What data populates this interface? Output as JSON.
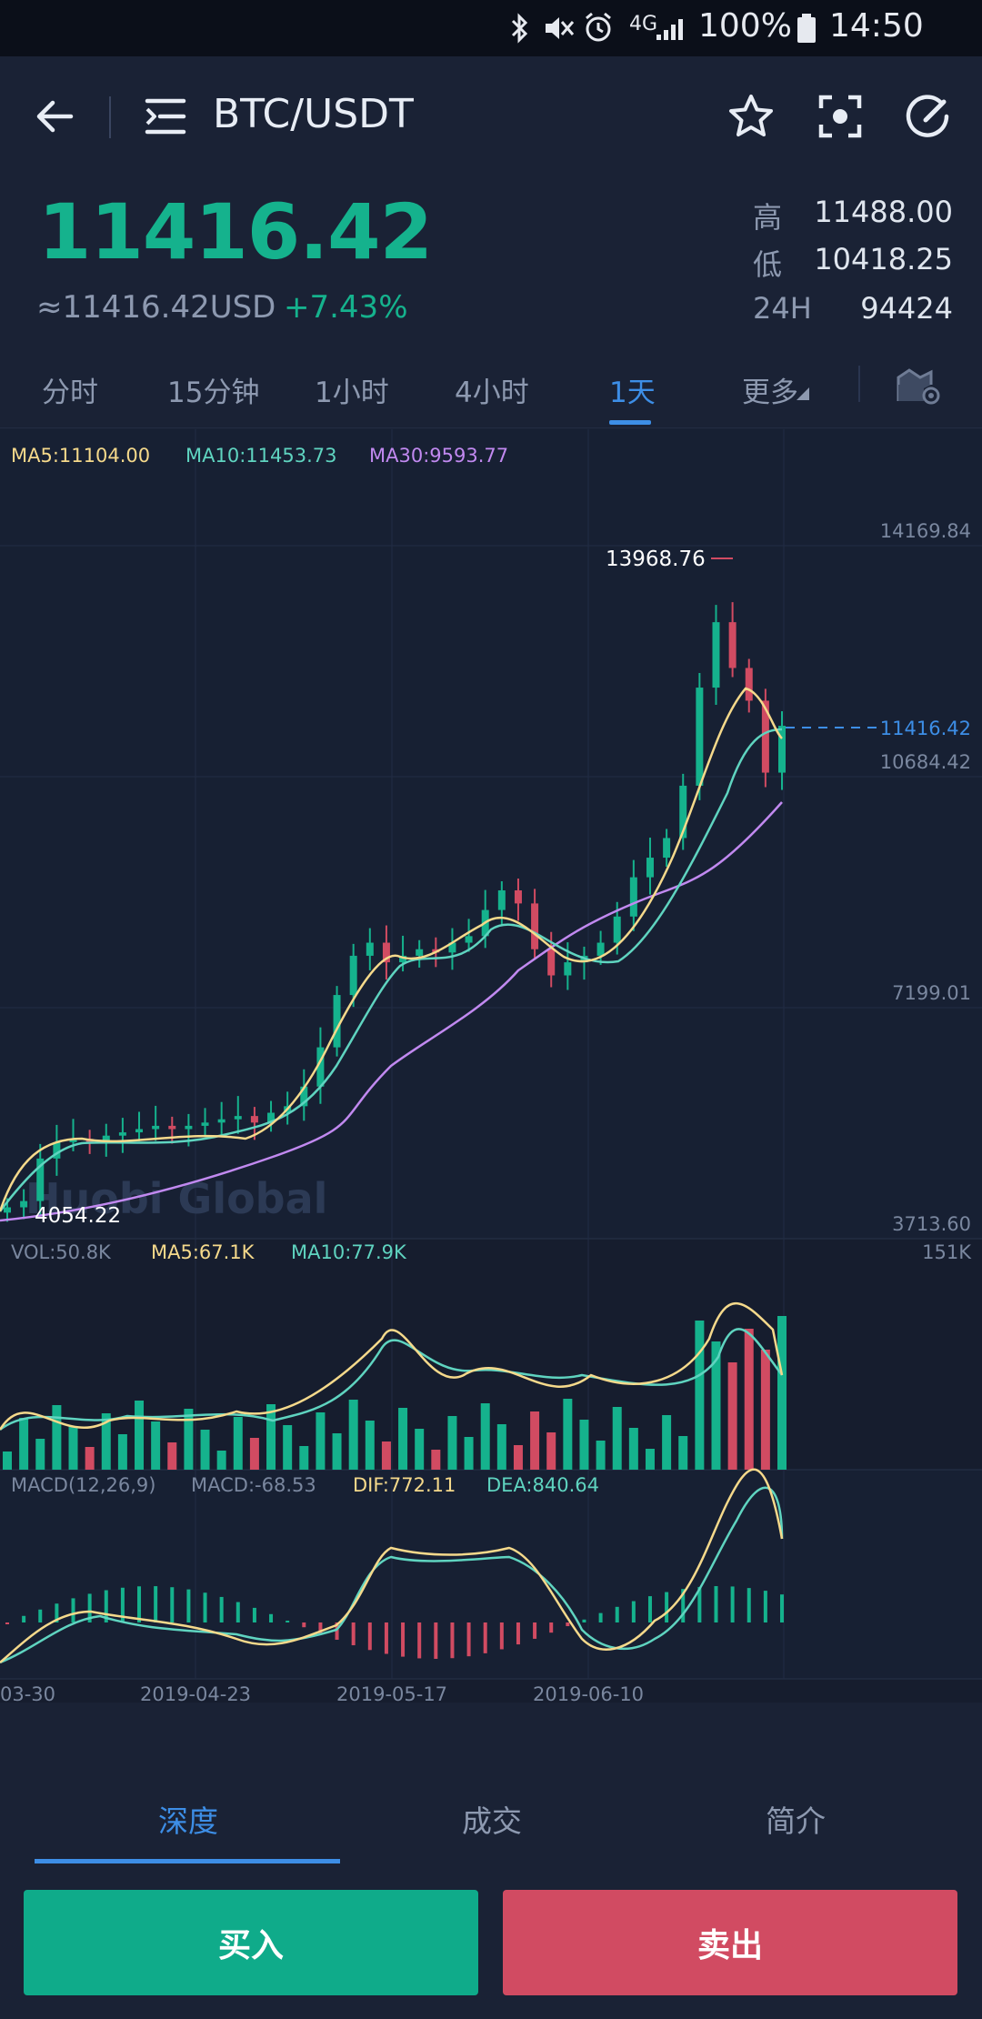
{
  "status_bar": {
    "network": "4G",
    "battery": "100%",
    "time": "14:50"
  },
  "header": {
    "pair": "BTC/USDT"
  },
  "price": {
    "last": "11416.42",
    "usd": "≈11416.42USD",
    "change": "+7.43%",
    "high_label": "高",
    "high": "11488.00",
    "low_label": "低",
    "low": "10418.25",
    "vol_label": "24H",
    "vol": "94424"
  },
  "tabs": [
    {
      "label": "分时"
    },
    {
      "label": "15分钟"
    },
    {
      "label": "1小时"
    },
    {
      "label": "4小时"
    },
    {
      "label": "1天"
    },
    {
      "label": "更多"
    }
  ],
  "chart_labels": {
    "ma5": "MA5:11104.00",
    "ma10": "MA10:11453.73",
    "ma30": "MA30:9593.77",
    "y_ticks": [
      "14169.84",
      "10684.42",
      "7199.01",
      "3713.60"
    ],
    "current": "11416.42",
    "high_marker": "13968.76",
    "low_marker": "4054.22",
    "watermark": "Huobi Global",
    "vol": "VOL:50.8K",
    "vol_ma5": "MA5:67.1K",
    "vol_ma10": "MA10:77.9K",
    "vol_max": "151K",
    "macd_title": "MACD(12,26,9)",
    "macd": "MACD:-68.53",
    "dif": "DIF:772.11",
    "dea": "DEA:840.64",
    "x_ticks": [
      "03-30",
      "2019-04-23",
      "2019-05-17",
      "2019-06-10"
    ]
  },
  "colors": {
    "up": "#15b28d",
    "down": "#d14b62",
    "ma5": "#f5d98b",
    "ma10": "#5fd4c0",
    "ma30": "#c189f0",
    "accent": "#3d8ee6"
  },
  "chart_data": {
    "type": "candlestick",
    "x": [
      "03-30",
      "2019-04-23",
      "2019-05-17",
      "2019-06-10"
    ],
    "price_ylim": [
      3713.6,
      14169.84
    ],
    "closes": [
      4054,
      4150,
      4800,
      5050,
      5100,
      5050,
      5150,
      5200,
      5250,
      5300,
      5250,
      5300,
      5350,
      5400,
      5450,
      5350,
      5500,
      5600,
      5900,
      6500,
      7300,
      7900,
      8100,
      7800,
      7900,
      8000,
      7950,
      8100,
      8200,
      8600,
      8900,
      8700,
      8000,
      7600,
      7800,
      7900,
      8100,
      8500,
      9100,
      9400,
      9700,
      10500,
      12000,
      13000,
      12300,
      11800,
      10700,
      11416
    ],
    "volume_ylim": [
      0,
      151
    ],
    "macd": {
      "dif": 772.11,
      "dea": 840.64,
      "macd": -68.53
    }
  },
  "bottom_tabs": [
    {
      "label": "深度"
    },
    {
      "label": "成交"
    },
    {
      "label": "简介"
    }
  ],
  "actions": {
    "buy": "买入",
    "sell": "卖出"
  }
}
